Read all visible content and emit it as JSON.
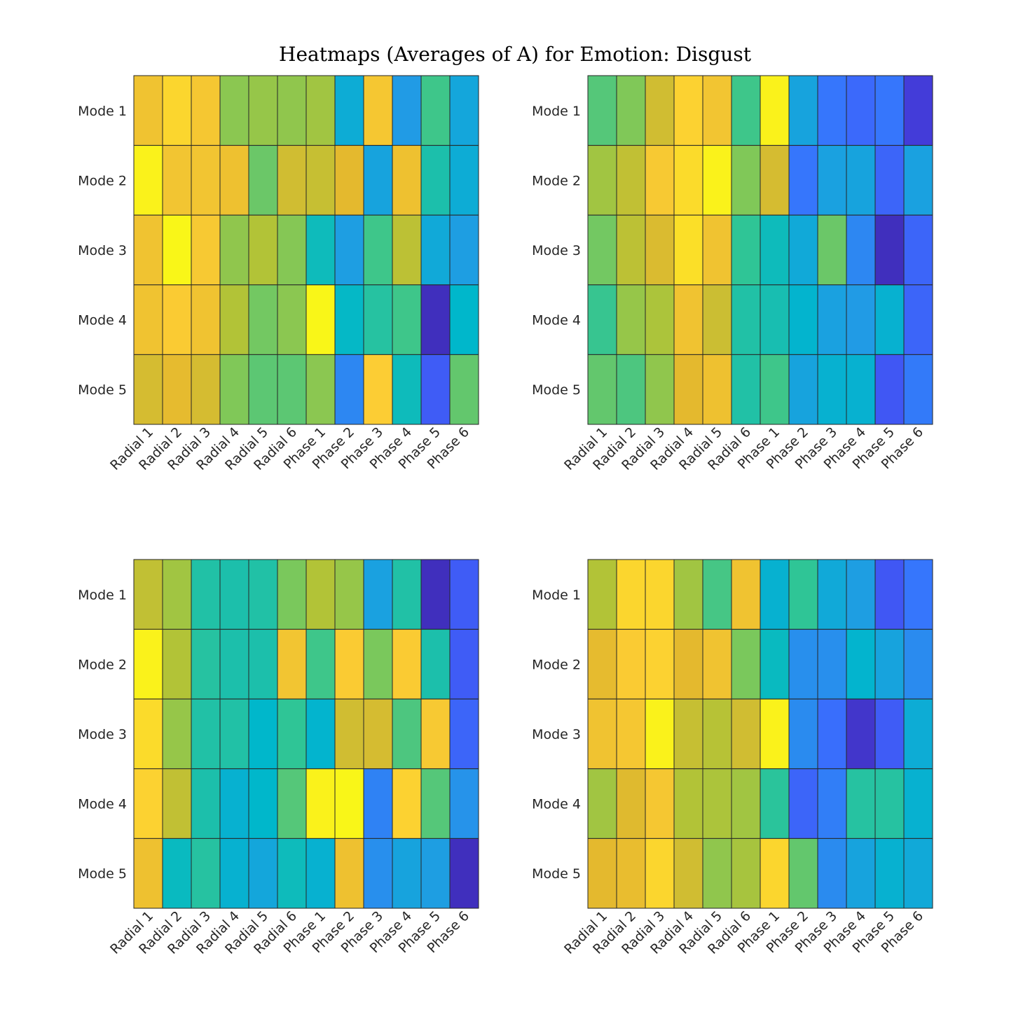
{
  "figure": {
    "title": "Heatmaps (Averages of A) for Emotion: Disgust"
  },
  "chart_data": [
    {
      "type": "heatmap",
      "title": "",
      "xlabel": "",
      "ylabel": "",
      "colormap": "parula",
      "color_range": [
        0,
        1
      ],
      "x_categories": [
        "Radial 1",
        "Radial 2",
        "Radial 3",
        "Radial 4",
        "Radial 5",
        "Radial 6",
        "Phase 1",
        "Phase 2",
        "Phase 3",
        "Phase 4",
        "Phase 5",
        "Phase 6"
      ],
      "y_categories": [
        "Mode 1",
        "Mode 2",
        "Mode 3",
        "Mode 4",
        "Mode 5"
      ],
      "values": [
        [
          0.85,
          0.92,
          0.87,
          0.63,
          0.65,
          0.64,
          0.67,
          0.36,
          0.87,
          0.3,
          0.52,
          0.34
        ],
        [
          0.98,
          0.86,
          0.86,
          0.84,
          0.58,
          0.76,
          0.74,
          0.8,
          0.33,
          0.84,
          0.46,
          0.36
        ],
        [
          0.85,
          0.99,
          0.88,
          0.64,
          0.7,
          0.62,
          0.43,
          0.31,
          0.52,
          0.72,
          0.35,
          0.31
        ],
        [
          0.85,
          0.89,
          0.85,
          0.7,
          0.59,
          0.63,
          0.99,
          0.41,
          0.48,
          0.52,
          0.03,
          0.4
        ],
        [
          0.77,
          0.81,
          0.77,
          0.61,
          0.56,
          0.56,
          0.63,
          0.25,
          0.9,
          0.43,
          0.15,
          0.57
        ]
      ]
    },
    {
      "type": "heatmap",
      "title": "",
      "xlabel": "",
      "ylabel": "",
      "colormap": "parula",
      "color_range": [
        0,
        1
      ],
      "x_categories": [
        "Radial 1",
        "Radial 2",
        "Radial 3",
        "Radial 4",
        "Radial 5",
        "Radial 6",
        "Phase 1",
        "Phase 2",
        "Phase 3",
        "Phase 4",
        "Phase 5",
        "Phase 6"
      ],
      "y_categories": [
        "Mode 1",
        "Mode 2",
        "Mode 3",
        "Mode 4",
        "Mode 5"
      ],
      "values": [
        [
          0.55,
          0.61,
          0.76,
          0.91,
          0.86,
          0.52,
          0.98,
          0.33,
          0.21,
          0.18,
          0.21,
          0.07
        ],
        [
          0.67,
          0.73,
          0.88,
          0.93,
          0.98,
          0.61,
          0.77,
          0.21,
          0.32,
          0.33,
          0.17,
          0.32
        ],
        [
          0.59,
          0.72,
          0.78,
          0.94,
          0.85,
          0.5,
          0.43,
          0.35,
          0.58,
          0.25,
          0.03,
          0.17
        ],
        [
          0.51,
          0.65,
          0.69,
          0.85,
          0.75,
          0.47,
          0.45,
          0.39,
          0.32,
          0.3,
          0.38,
          0.17
        ],
        [
          0.57,
          0.54,
          0.64,
          0.8,
          0.84,
          0.47,
          0.52,
          0.33,
          0.38,
          0.38,
          0.14,
          0.22
        ]
      ]
    },
    {
      "type": "heatmap",
      "title": "",
      "xlabel": "",
      "ylabel": "",
      "colormap": "parula",
      "color_range": [
        0,
        1
      ],
      "x_categories": [
        "Radial 1",
        "Radial 2",
        "Radial 3",
        "Radial 4",
        "Radial 5",
        "Radial 6",
        "Phase 1",
        "Phase 2",
        "Phase 3",
        "Phase 4",
        "Phase 5",
        "Phase 6"
      ],
      "y_categories": [
        "Mode 1",
        "Mode 2",
        "Mode 3",
        "Mode 4",
        "Mode 5"
      ],
      "values": [
        [
          0.73,
          0.67,
          0.47,
          0.46,
          0.47,
          0.6,
          0.7,
          0.65,
          0.32,
          0.47,
          0.03,
          0.15
        ],
        [
          0.98,
          0.7,
          0.48,
          0.46,
          0.46,
          0.86,
          0.52,
          0.89,
          0.6,
          0.89,
          0.46,
          0.15
        ],
        [
          0.93,
          0.65,
          0.47,
          0.47,
          0.4,
          0.5,
          0.39,
          0.76,
          0.77,
          0.54,
          0.88,
          0.17
        ],
        [
          0.91,
          0.73,
          0.46,
          0.38,
          0.4,
          0.55,
          0.98,
          0.99,
          0.24,
          0.91,
          0.55,
          0.28
        ],
        [
          0.84,
          0.42,
          0.48,
          0.38,
          0.34,
          0.43,
          0.38,
          0.84,
          0.27,
          0.33,
          0.31,
          0.03
        ]
      ]
    },
    {
      "type": "heatmap",
      "title": "",
      "xlabel": "",
      "ylabel": "",
      "colormap": "parula",
      "color_range": [
        0,
        1
      ],
      "x_categories": [
        "Radial 1",
        "Radial 2",
        "Radial 3",
        "Radial 4",
        "Radial 5",
        "Radial 6",
        "Phase 1",
        "Phase 2",
        "Phase 3",
        "Phase 4",
        "Phase 5",
        "Phase 6"
      ],
      "y_categories": [
        "Mode 1",
        "Mode 2",
        "Mode 3",
        "Mode 4",
        "Mode 5"
      ],
      "values": [
        [
          0.7,
          0.92,
          0.92,
          0.67,
          0.53,
          0.85,
          0.38,
          0.5,
          0.35,
          0.31,
          0.14,
          0.21
        ],
        [
          0.81,
          0.89,
          0.91,
          0.8,
          0.85,
          0.6,
          0.42,
          0.27,
          0.27,
          0.39,
          0.33,
          0.26
        ],
        [
          0.85,
          0.87,
          0.98,
          0.74,
          0.71,
          0.76,
          0.98,
          0.26,
          0.19,
          0.05,
          0.15,
          0.36
        ],
        [
          0.67,
          0.79,
          0.87,
          0.7,
          0.69,
          0.67,
          0.49,
          0.17,
          0.23,
          0.48,
          0.48,
          0.38
        ],
        [
          0.8,
          0.82,
          0.92,
          0.76,
          0.64,
          0.68,
          0.92,
          0.57,
          0.26,
          0.33,
          0.38,
          0.35
        ]
      ]
    }
  ]
}
